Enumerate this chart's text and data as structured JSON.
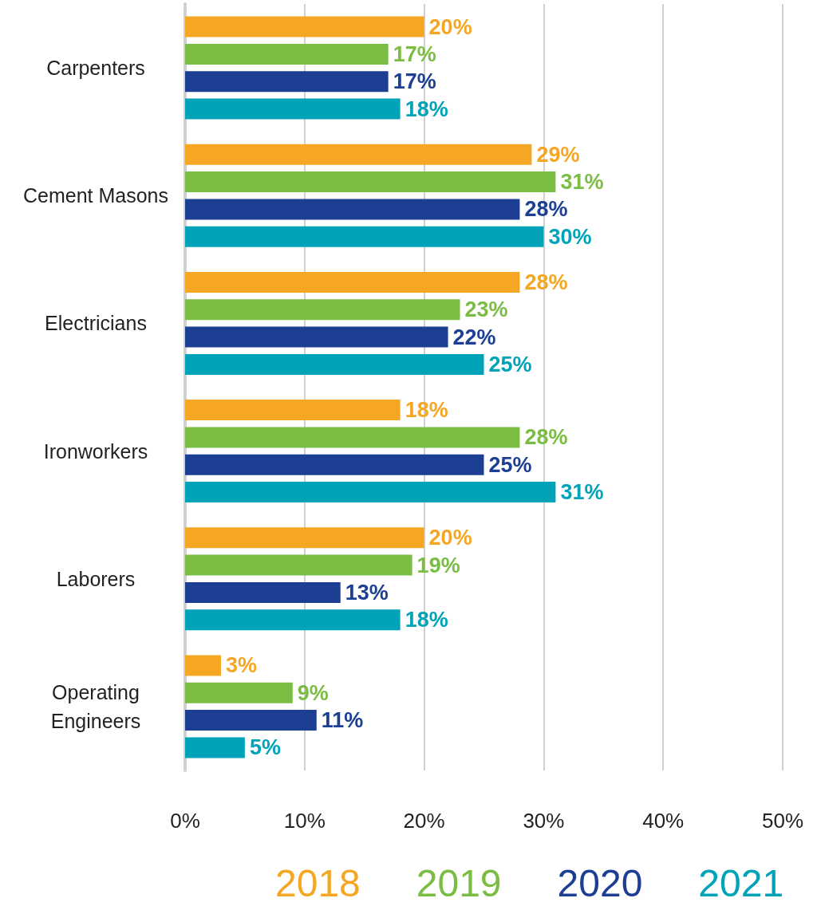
{
  "chart_data": {
    "type": "bar",
    "orientation": "horizontal",
    "categories": [
      "Carpenters",
      "Cement Masons",
      "Electricians",
      "Ironworkers",
      "Laborers",
      "Operating\nEngineers"
    ],
    "series": [
      {
        "name": "2018",
        "color": "#f5a623",
        "values": [
          20,
          29,
          28,
          18,
          20,
          3
        ],
        "value_labels": [
          "20%",
          "29%",
          "28%",
          "18%",
          "20%",
          "3%"
        ]
      },
      {
        "name": "2019",
        "color": "#7bbd42",
        "values": [
          17,
          31,
          23,
          28,
          19,
          9
        ],
        "value_labels": [
          "17%",
          "31%",
          "23%",
          "28%",
          "19%",
          "9%"
        ]
      },
      {
        "name": "2020",
        "color": "#1c3f94",
        "values": [
          17,
          28,
          22,
          25,
          13,
          11
        ],
        "value_labels": [
          "17%",
          "28%",
          "22%",
          "25%",
          "13%",
          "11%"
        ]
      },
      {
        "name": "2021",
        "color": "#00a3b8",
        "values": [
          18,
          30,
          25,
          31,
          18,
          5
        ],
        "value_labels": [
          "18%",
          "30%",
          "25%",
          "31%",
          "18%",
          "5%"
        ]
      }
    ],
    "xlim": [
      0,
      50
    ],
    "xticks": [
      {
        "value": 0,
        "label": "0%"
      },
      {
        "value": 10,
        "label": "10%"
      },
      {
        "value": 20,
        "label": "20%"
      },
      {
        "value": 30,
        "label": "30%"
      },
      {
        "value": 40,
        "label": "40%"
      },
      {
        "value": 50,
        "label": "50%"
      }
    ],
    "grid": "x",
    "legend": "bottom"
  }
}
